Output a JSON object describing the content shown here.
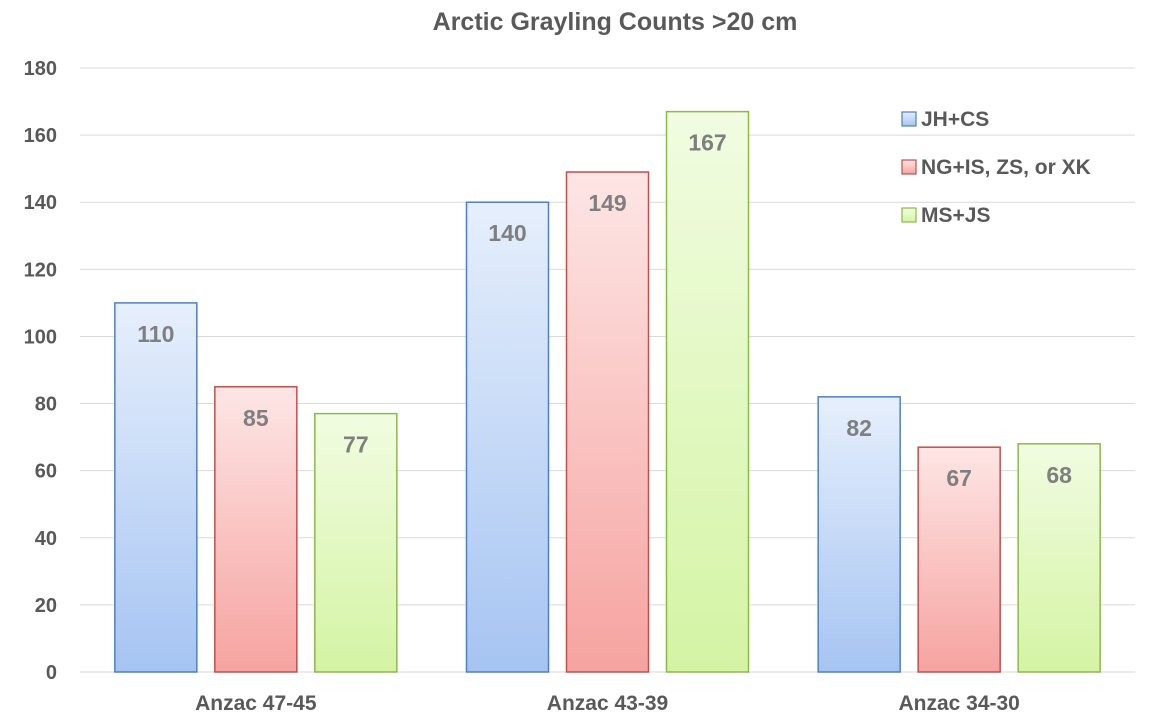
{
  "chart_data": {
    "type": "bar",
    "title": "Arctic Grayling Counts >20 cm",
    "xlabel": "",
    "ylabel": "",
    "categories": [
      "Anzac 47-45",
      "Anzac 43-39",
      "Anzac 34-30"
    ],
    "series": [
      {
        "name": "JH+CS",
        "values": [
          110,
          140,
          82
        ],
        "color": "#a6c4f2",
        "stroke": "#4f7fc6",
        "color_top": "#e6effc"
      },
      {
        "name": "NG+IS, ZS, or XK",
        "values": [
          85,
          149,
          67
        ],
        "color": "#f6a3a0",
        "stroke": "#c0504d",
        "color_top": "#fde6e5"
      },
      {
        "name": "MS+JS",
        "values": [
          77,
          167,
          68
        ],
        "color": "#d4f4a4",
        "stroke": "#8db84a",
        "color_top": "#f1fce1"
      }
    ],
    "ylim": [
      0,
      180
    ],
    "yticks": [
      0,
      20,
      40,
      60,
      80,
      100,
      120,
      140,
      160,
      180
    ],
    "grid": true,
    "data_labels": true,
    "legend_position": "top-right"
  }
}
